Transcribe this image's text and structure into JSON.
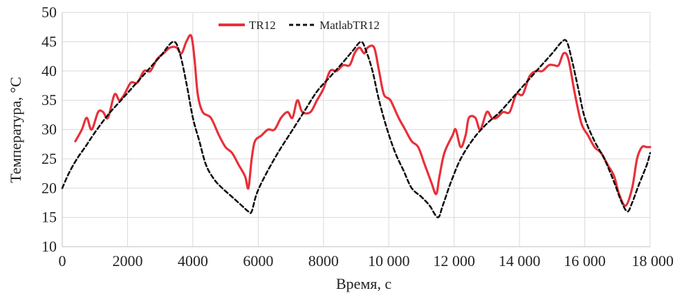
{
  "chart_data": {
    "type": "line",
    "xlabel": "Время, с",
    "ylabel": "Температура, °С",
    "xlim": [
      0,
      18000
    ],
    "ylim": [
      10,
      50
    ],
    "x_ticks": [
      0,
      2000,
      4000,
      6000,
      8000,
      10000,
      12000,
      14000,
      16000,
      18000
    ],
    "x_tick_labels": [
      "0",
      "2000",
      "4000",
      "6000",
      "8000",
      "10 000",
      "12 000",
      "14 000",
      "16 000",
      "18 000"
    ],
    "y_ticks": [
      10,
      15,
      20,
      25,
      30,
      35,
      40,
      45,
      50
    ],
    "y_tick_labels": [
      "10",
      "15",
      "20",
      "25",
      "30",
      "35",
      "40",
      "45",
      "50"
    ],
    "grid": true,
    "legend_position": "top-center",
    "series": [
      {
        "name": "TR12",
        "color": "#e8303a",
        "style": "solid",
        "points": [
          [
            400,
            28
          ],
          [
            600,
            30
          ],
          [
            750,
            32
          ],
          [
            900,
            30
          ],
          [
            1100,
            33
          ],
          [
            1250,
            33
          ],
          [
            1400,
            32
          ],
          [
            1600,
            36
          ],
          [
            1750,
            35
          ],
          [
            1900,
            36
          ],
          [
            2100,
            38
          ],
          [
            2300,
            38
          ],
          [
            2500,
            40
          ],
          [
            2700,
            40
          ],
          [
            2900,
            42
          ],
          [
            3100,
            43
          ],
          [
            3300,
            44
          ],
          [
            3500,
            44
          ],
          [
            3650,
            43
          ],
          [
            3800,
            45
          ],
          [
            3950,
            46
          ],
          [
            4050,
            42
          ],
          [
            4150,
            36
          ],
          [
            4300,
            33
          ],
          [
            4550,
            32
          ],
          [
            4800,
            29
          ],
          [
            5000,
            27
          ],
          [
            5200,
            26
          ],
          [
            5400,
            24
          ],
          [
            5600,
            22
          ],
          [
            5700,
            20
          ],
          [
            5800,
            25
          ],
          [
            5900,
            28
          ],
          [
            6100,
            29
          ],
          [
            6300,
            30
          ],
          [
            6500,
            30
          ],
          [
            6700,
            32
          ],
          [
            6900,
            33
          ],
          [
            7050,
            32
          ],
          [
            7200,
            35
          ],
          [
            7350,
            33
          ],
          [
            7600,
            33
          ],
          [
            7800,
            35
          ],
          [
            8000,
            37
          ],
          [
            8200,
            40
          ],
          [
            8400,
            40
          ],
          [
            8600,
            41
          ],
          [
            8800,
            41
          ],
          [
            8950,
            43
          ],
          [
            9100,
            44
          ],
          [
            9250,
            43
          ],
          [
            9350,
            44
          ],
          [
            9550,
            44
          ],
          [
            9700,
            40
          ],
          [
            9850,
            36
          ],
          [
            10050,
            35
          ],
          [
            10300,
            32
          ],
          [
            10500,
            30
          ],
          [
            10700,
            28
          ],
          [
            10900,
            27
          ],
          [
            11100,
            24
          ],
          [
            11300,
            21
          ],
          [
            11450,
            19
          ],
          [
            11550,
            22
          ],
          [
            11700,
            26
          ],
          [
            11950,
            29
          ],
          [
            12050,
            30
          ],
          [
            12200,
            27
          ],
          [
            12350,
            29
          ],
          [
            12450,
            32
          ],
          [
            12650,
            32
          ],
          [
            12800,
            30
          ],
          [
            13000,
            33
          ],
          [
            13150,
            32
          ],
          [
            13300,
            32
          ],
          [
            13500,
            33
          ],
          [
            13700,
            33
          ],
          [
            13900,
            36
          ],
          [
            14100,
            36
          ],
          [
            14300,
            39
          ],
          [
            14500,
            40
          ],
          [
            14700,
            40
          ],
          [
            14900,
            41
          ],
          [
            15050,
            41
          ],
          [
            15200,
            41
          ],
          [
            15350,
            43
          ],
          [
            15500,
            42
          ],
          [
            15700,
            36
          ],
          [
            15900,
            31
          ],
          [
            16100,
            29
          ],
          [
            16300,
            27
          ],
          [
            16500,
            26
          ],
          [
            16700,
            24
          ],
          [
            16900,
            22
          ],
          [
            17050,
            19
          ],
          [
            17250,
            17
          ],
          [
            17450,
            20
          ],
          [
            17600,
            25
          ],
          [
            17750,
            27
          ],
          [
            17900,
            27
          ],
          [
            18000,
            27
          ]
        ]
      },
      {
        "name": "MatlabTR12",
        "color": "#111111",
        "style": "dashed",
        "points": [
          [
            0,
            20
          ],
          [
            200,
            22.5
          ],
          [
            450,
            25
          ],
          [
            700,
            27
          ],
          [
            1000,
            29.5
          ],
          [
            1400,
            32.5
          ],
          [
            1800,
            35
          ],
          [
            2200,
            37.5
          ],
          [
            2600,
            40
          ],
          [
            3000,
            42.5
          ],
          [
            3400,
            45
          ],
          [
            3600,
            43
          ],
          [
            3800,
            38
          ],
          [
            4000,
            32
          ],
          [
            4200,
            28
          ],
          [
            4400,
            24
          ],
          [
            4650,
            21.5
          ],
          [
            4900,
            20
          ],
          [
            5200,
            18.5
          ],
          [
            5500,
            17
          ],
          [
            5700,
            16
          ],
          [
            5800,
            16
          ],
          [
            5950,
            19
          ],
          [
            6200,
            22
          ],
          [
            6600,
            26
          ],
          [
            7000,
            29.5
          ],
          [
            7400,
            33
          ],
          [
            7800,
            36.5
          ],
          [
            8200,
            39
          ],
          [
            8600,
            41.5
          ],
          [
            8900,
            43.5
          ],
          [
            9150,
            45
          ],
          [
            9300,
            43.5
          ],
          [
            9500,
            40
          ],
          [
            9700,
            35
          ],
          [
            9950,
            30
          ],
          [
            10200,
            26
          ],
          [
            10450,
            23
          ],
          [
            10700,
            20
          ],
          [
            11000,
            18.5
          ],
          [
            11250,
            17
          ],
          [
            11500,
            15
          ],
          [
            11650,
            17
          ],
          [
            11900,
            21
          ],
          [
            12200,
            25
          ],
          [
            12600,
            28.5
          ],
          [
            13000,
            31
          ],
          [
            13400,
            33
          ],
          [
            13800,
            35.5
          ],
          [
            14200,
            38
          ],
          [
            14600,
            40.5
          ],
          [
            15000,
            43
          ],
          [
            15300,
            45
          ],
          [
            15450,
            45
          ],
          [
            15600,
            42
          ],
          [
            15800,
            37
          ],
          [
            16000,
            32
          ],
          [
            16300,
            28
          ],
          [
            16600,
            25
          ],
          [
            16900,
            21
          ],
          [
            17100,
            18
          ],
          [
            17300,
            16
          ],
          [
            17450,
            17.5
          ],
          [
            17650,
            20.5
          ],
          [
            17900,
            24
          ],
          [
            18000,
            26
          ]
        ]
      }
    ]
  }
}
